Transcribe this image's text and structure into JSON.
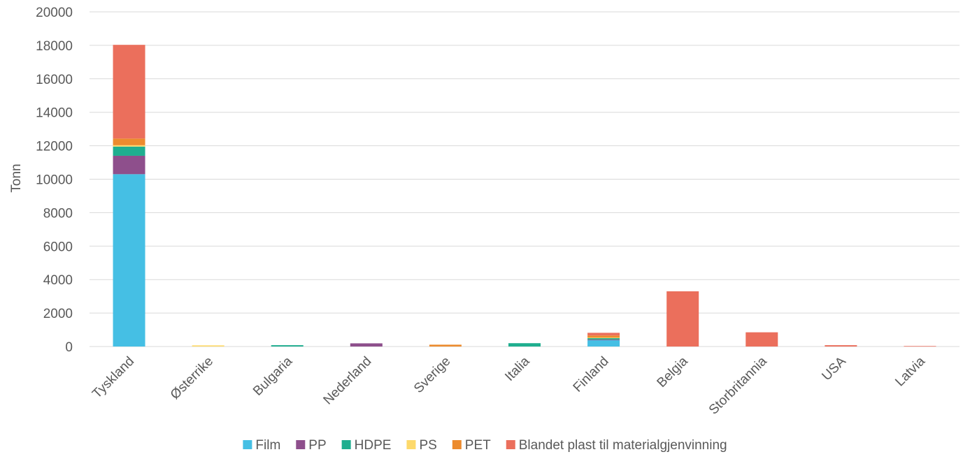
{
  "chart_data": {
    "type": "bar",
    "stacked": true,
    "title": "",
    "xlabel": "",
    "ylabel": "Tonn",
    "ylim": [
      0,
      20000
    ],
    "yticks": [
      0,
      2000,
      4000,
      6000,
      8000,
      10000,
      12000,
      14000,
      16000,
      18000,
      20000
    ],
    "grid": true,
    "legend_position": "bottom",
    "categories": [
      "Tyskland",
      "Østerrike",
      "Bulgaria",
      "Nederland",
      "Sverige",
      "Italia",
      "Finland",
      "Belgia",
      "Storbritannia",
      "USA",
      "Latvia"
    ],
    "series": [
      {
        "name": "Film",
        "color": "#45bfe4",
        "values": [
          10300,
          0,
          0,
          0,
          0,
          0,
          380,
          0,
          0,
          0,
          0
        ]
      },
      {
        "name": "PP",
        "color": "#8e4f8c",
        "values": [
          1100,
          0,
          0,
          190,
          0,
          0,
          40,
          0,
          0,
          0,
          0
        ]
      },
      {
        "name": "HDPE",
        "color": "#1fae8f",
        "values": [
          550,
          0,
          80,
          0,
          0,
          200,
          90,
          0,
          0,
          0,
          0
        ]
      },
      {
        "name": "PS",
        "color": "#fdd96b",
        "values": [
          80,
          70,
          0,
          0,
          0,
          0,
          20,
          0,
          0,
          0,
          0
        ]
      },
      {
        "name": "PET",
        "color": "#ec8b2e",
        "values": [
          400,
          0,
          0,
          0,
          110,
          0,
          130,
          0,
          0,
          0,
          0
        ]
      },
      {
        "name": "Blandet plast til materialgjenvinning",
        "color": "#eb6f5c",
        "values": [
          5600,
          0,
          0,
          0,
          0,
          0,
          160,
          3300,
          850,
          80,
          30
        ]
      }
    ]
  }
}
